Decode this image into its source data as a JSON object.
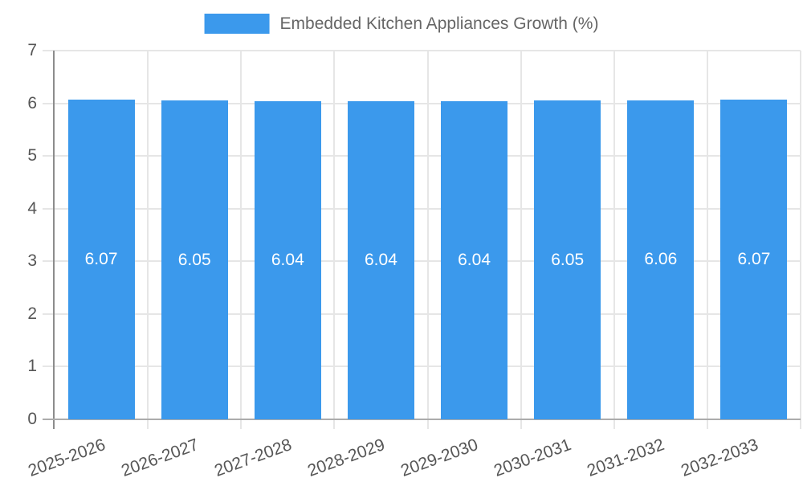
{
  "chart_data": {
    "type": "bar",
    "title": "",
    "legend": {
      "label": "Embedded Kitchen Appliances Growth (%)",
      "position": "top"
    },
    "categories": [
      "2025-2026",
      "2026-2027",
      "2027-2028",
      "2028-2029",
      "2029-2030",
      "2030-2031",
      "2031-2032",
      "2032-2033"
    ],
    "series": [
      {
        "name": "Embedded Kitchen Appliances Growth (%)",
        "values": [
          6.07,
          6.05,
          6.04,
          6.04,
          6.04,
          6.05,
          6.06,
          6.07
        ]
      }
    ],
    "value_labels": [
      "6.07",
      "6.05",
      "6.04",
      "6.04",
      "6.04",
      "6.05",
      "6.06",
      "6.07"
    ],
    "xlabel": "",
    "ylabel": "",
    "ylim": [
      0,
      7
    ],
    "yticks": [
      0,
      1,
      2,
      3,
      4,
      5,
      6,
      7
    ],
    "grid": true,
    "colors": {
      "bar": "#3B99EC",
      "bar_value_text": "#FFFFFF",
      "tick_text": "#565656",
      "legend_text": "#666666",
      "gridline": "#E6E6E6",
      "y_axis_line": "#8C8C8C",
      "x_axis_line": "#ACACAC"
    }
  }
}
